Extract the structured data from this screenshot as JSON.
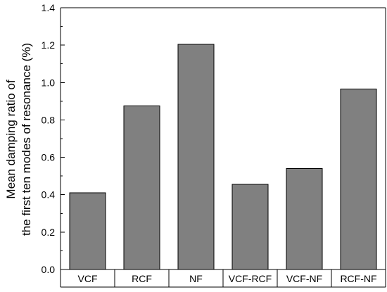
{
  "chart_data": {
    "type": "bar",
    "categories": [
      "VCF",
      "RCF",
      "NF",
      "VCF-RCF",
      "VCF-NF",
      "RCF-NF"
    ],
    "values": [
      0.41,
      0.875,
      1.205,
      0.455,
      0.54,
      0.965
    ],
    "ylabel": {
      "line1": "Mean damping ratio of",
      "line2": "the first ten modes of resonance (%)"
    },
    "xlabel": "",
    "ylim": [
      0.0,
      1.4
    ],
    "yticks": [
      "0.0",
      "0.2",
      "0.4",
      "0.6",
      "0.8",
      "1.0",
      "1.2",
      "1.4"
    ],
    "grid": false,
    "legend": "none",
    "colors": {
      "bar_fill": "#808080",
      "bar_stroke": "#000000",
      "axis": "#000000",
      "background": "#ffffff"
    }
  }
}
